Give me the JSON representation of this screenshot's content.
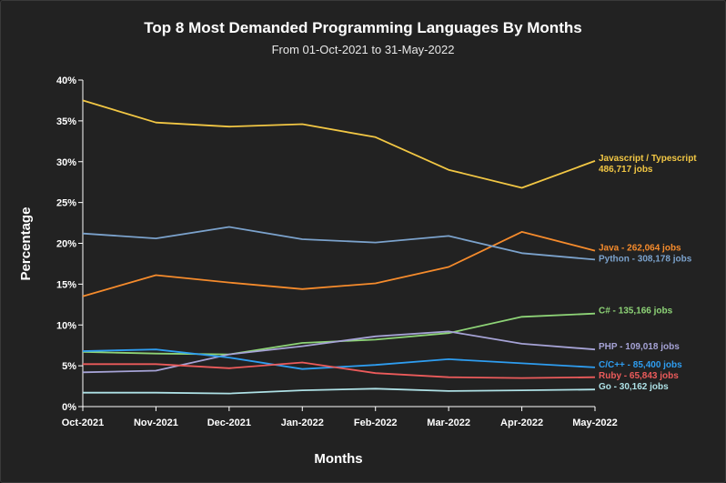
{
  "chart_data": {
    "type": "line",
    "title": "Top 8 Most Demanded Programming Languages By Months",
    "subtitle": "From 01-Oct-2021 to 31-May-2022",
    "xlabel": "Months",
    "ylabel": "Percentage",
    "categories": [
      "Oct-2021",
      "Nov-2021",
      "Dec-2021",
      "Jan-2022",
      "Feb-2022",
      "Mar-2022",
      "Apr-2022",
      "May-2022"
    ],
    "ylim": [
      0,
      40
    ],
    "yticks": [
      0,
      5,
      10,
      15,
      20,
      25,
      30,
      35,
      40
    ],
    "ytick_labels": [
      "0%",
      "5%",
      "10%",
      "15%",
      "20%",
      "25%",
      "30%",
      "35%",
      "40%"
    ],
    "grid": false,
    "series": [
      {
        "name": "Javascript / Typescript",
        "label_lines": [
          "Javascript / Typescript",
          "486,717 jobs"
        ],
        "color": "#f2c744",
        "values": [
          37.5,
          34.8,
          34.3,
          34.6,
          33.0,
          29.0,
          26.8,
          30.1
        ]
      },
      {
        "name": "Java",
        "label_lines": [
          "Java - 262,064 jobs"
        ],
        "color": "#f58b2c",
        "values": [
          13.5,
          16.1,
          15.2,
          14.4,
          15.1,
          17.1,
          21.4,
          19.1
        ]
      },
      {
        "name": "Python",
        "label_lines": [
          "Python - 308,178 jobs"
        ],
        "color": "#7ba2cc",
        "values": [
          21.2,
          20.6,
          22.0,
          20.5,
          20.1,
          20.9,
          18.8,
          18.0
        ]
      },
      {
        "name": "C#",
        "label_lines": [
          "C# - 135,166 jobs"
        ],
        "color": "#8ed477",
        "values": [
          6.7,
          6.5,
          6.4,
          7.8,
          8.2,
          9.0,
          11.0,
          11.4
        ]
      },
      {
        "name": "PHP",
        "label_lines": [
          "PHP - 109,018 jobs"
        ],
        "color": "#a6a3d6",
        "values": [
          4.2,
          4.4,
          6.4,
          7.4,
          8.6,
          9.2,
          7.7,
          7.0
        ]
      },
      {
        "name": "C/C++",
        "label_lines": [
          "C/C++ - 85,400 jobs"
        ],
        "color": "#2e9df0",
        "values": [
          6.8,
          7.0,
          6.0,
          4.6,
          5.1,
          5.8,
          5.3,
          4.8
        ]
      },
      {
        "name": "Ruby",
        "label_lines": [
          "Ruby - 65,843 jobs"
        ],
        "color": "#ec5b5b",
        "values": [
          5.2,
          5.2,
          4.7,
          5.4,
          4.1,
          3.6,
          3.5,
          3.6
        ]
      },
      {
        "name": "Go",
        "label_lines": [
          "Go - 30,162 jobs"
        ],
        "color": "#aee1e6",
        "values": [
          1.7,
          1.7,
          1.6,
          2.0,
          2.2,
          1.9,
          2.0,
          2.1
        ]
      }
    ]
  }
}
